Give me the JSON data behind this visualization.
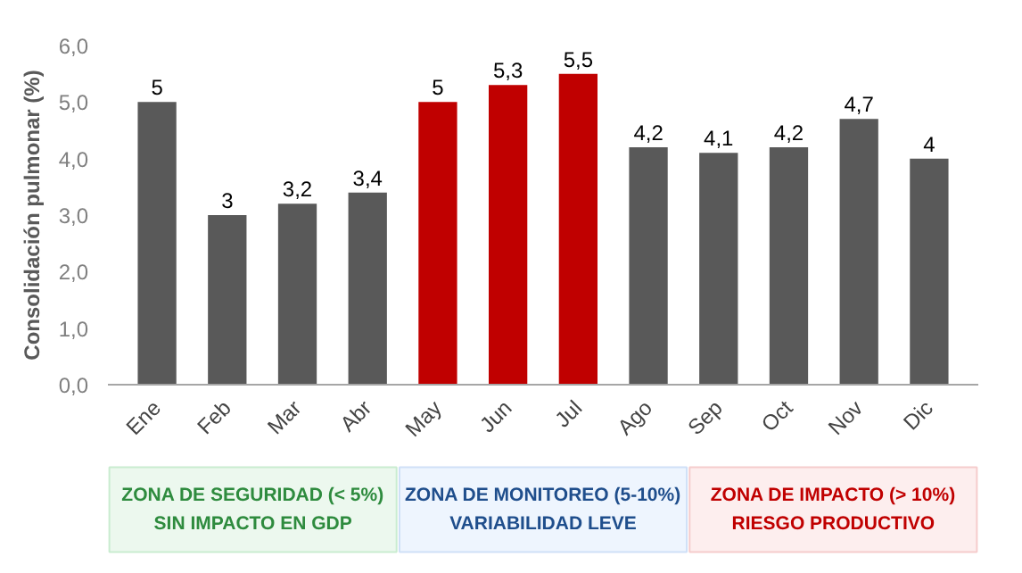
{
  "chart_data": {
    "type": "bar",
    "ylabel": "Consolidación pulmonar (%)",
    "categories": [
      "Ene",
      "Feb",
      "Mar",
      "Abr",
      "May",
      "Jun",
      "Jul",
      "Ago",
      "Sep",
      "Oct",
      "Nov",
      "Dic"
    ],
    "values": [
      5,
      3,
      3.2,
      3.4,
      5,
      5.3,
      5.5,
      4.2,
      4.1,
      4.2,
      4.7,
      4
    ],
    "colors": [
      "#595959",
      "#595959",
      "#595959",
      "#595959",
      "#c00000",
      "#c00000",
      "#c00000",
      "#595959",
      "#595959",
      "#595959",
      "#595959",
      "#595959"
    ],
    "value_labels": [
      "5",
      "3",
      "3,2",
      "3,4",
      "5",
      "5,3",
      "5,5",
      "4,2",
      "4,1",
      "4,2",
      "4,7",
      "4"
    ],
    "ylim": [
      0,
      6
    ],
    "yticks": [
      {
        "value": 0,
        "label": "0,0"
      },
      {
        "value": 1,
        "label": "1,0"
      },
      {
        "value": 2,
        "label": "2,0"
      },
      {
        "value": 3,
        "label": "3,0"
      },
      {
        "value": 4,
        "label": "4,0"
      },
      {
        "value": 5,
        "label": "5,0"
      },
      {
        "value": 6,
        "label": "6,0"
      }
    ],
    "grid": false,
    "annotations": [
      "ZONA DE SEGURIDAD (< 5%)\nSIN IMPACTO EN GDP",
      "ZONA DE MONITOREO (5-10%)\nVARIABILIDAD LEVE",
      "ZONA DE IMPACTO (> 10%)\nRIESGO PRODUCTIVO"
    ]
  }
}
